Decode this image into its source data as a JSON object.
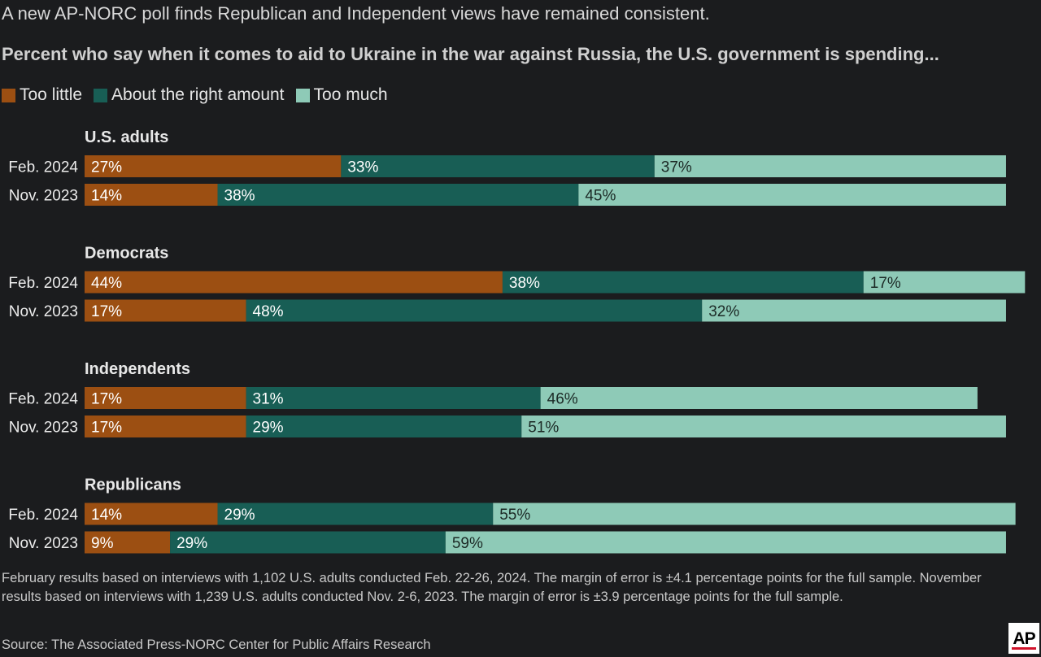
{
  "header": {
    "subtitle": "A new AP-NORC poll finds Republican and Independent views have remained consistent.",
    "title": "Percent who say when it comes to aid to Ukraine in the war against Russia, the U.S. government is spending..."
  },
  "legend": [
    {
      "label": "Too little",
      "color": "#9c4f12"
    },
    {
      "label": "About the right amount",
      "color": "#185e55"
    },
    {
      "label": "Too much",
      "color": "#8ecab7"
    }
  ],
  "chart_data": {
    "type": "bar",
    "orientation": "horizontal",
    "stacked": true,
    "series_names": [
      "Too little",
      "About the right amount",
      "Too much"
    ],
    "colors": [
      "#9c4f12",
      "#185e55",
      "#8ecab7"
    ],
    "groups": [
      {
        "name": "U.S. adults",
        "rows": [
          {
            "label": "Feb. 2024",
            "values": [
              27,
              33,
              37
            ]
          },
          {
            "label": "Nov. 2023",
            "values": [
              14,
              38,
              45
            ]
          }
        ]
      },
      {
        "name": "Democrats",
        "rows": [
          {
            "label": "Feb. 2024",
            "values": [
              44,
              38,
              17
            ]
          },
          {
            "label": "Nov. 2023",
            "values": [
              17,
              48,
              32
            ]
          }
        ]
      },
      {
        "name": "Independents",
        "rows": [
          {
            "label": "Feb. 2024",
            "values": [
              17,
              31,
              46
            ]
          },
          {
            "label": "Nov. 2023",
            "values": [
              17,
              29,
              51
            ]
          }
        ]
      },
      {
        "name": "Republicans",
        "rows": [
          {
            "label": "Feb. 2024",
            "values": [
              14,
              29,
              55
            ]
          },
          {
            "label": "Nov. 2023",
            "values": [
              9,
              29,
              59
            ]
          }
        ]
      }
    ],
    "value_suffix": "%",
    "xlim": [
      0,
      100
    ]
  },
  "footer": {
    "note": "February results based on interviews with 1,102 U.S. adults conducted Feb. 22-26, 2024. The margin of error is ±4.1 percentage points for the full sample. November results based on interviews with 1,239 U.S. adults conducted Nov. 2-6, 2023. The margin of error is ±3.9 percentage points for the full sample.",
    "source": "Source: The Associated Press-NORC Center for Public Affairs Research",
    "logo_text": "AP"
  }
}
